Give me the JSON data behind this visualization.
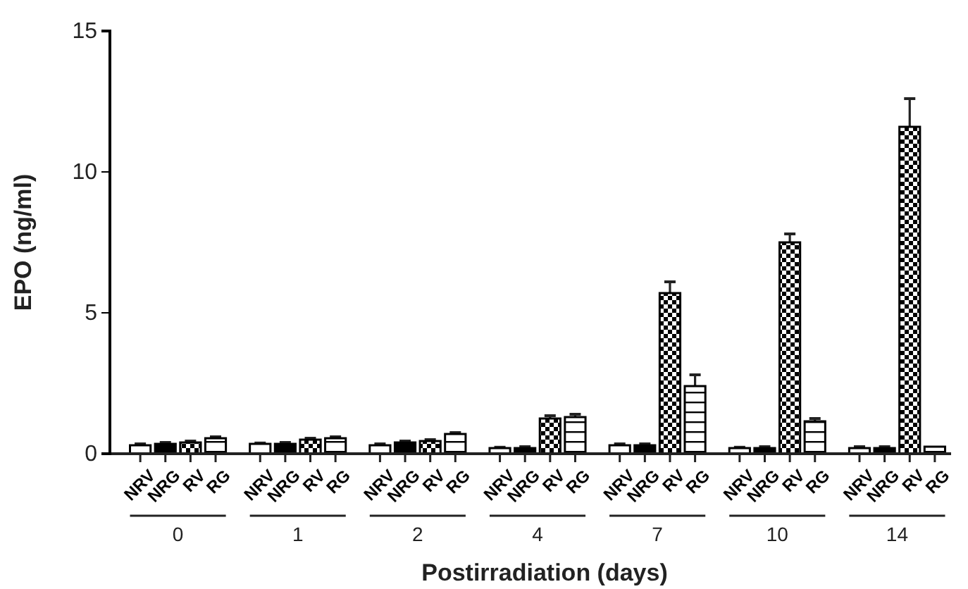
{
  "chart_data": {
    "type": "bar",
    "xlabel": "Postirradiation (days)",
    "ylabel": "EPO (ng/ml)",
    "categories": [
      "0",
      "1",
      "2",
      "4",
      "7",
      "10",
      "14"
    ],
    "ylim": [
      0,
      15
    ],
    "yticks": [
      0,
      5,
      10,
      15
    ],
    "grid": false,
    "legend": "bottom",
    "series": [
      {
        "name": "NRV",
        "color": "#ffffff",
        "values": [
          0.3,
          0.35,
          0.3,
          0.2,
          0.3,
          0.2,
          0.2
        ],
        "errors": [
          0.05,
          0.03,
          0.05,
          0.03,
          0.05,
          0.03,
          0.05
        ]
      },
      {
        "name": "NRG",
        "color": "#000000",
        "values": [
          0.35,
          0.35,
          0.4,
          0.2,
          0.3,
          0.2,
          0.2
        ],
        "errors": [
          0.05,
          0.05,
          0.05,
          0.05,
          0.05,
          0.05,
          0.05
        ]
      },
      {
        "name": "RV",
        "color": "#000000",
        "values": [
          0.4,
          0.5,
          0.45,
          1.25,
          5.7,
          7.5,
          11.6
        ],
        "errors": [
          0.05,
          0.05,
          0.05,
          0.1,
          0.4,
          0.3,
          1.0
        ]
      },
      {
        "name": "RG",
        "color": "#000000",
        "values": [
          0.55,
          0.55,
          0.7,
          1.3,
          2.4,
          1.15,
          0.25
        ],
        "errors": [
          0.05,
          0.05,
          0.05,
          0.1,
          0.4,
          0.1,
          null
        ]
      }
    ]
  }
}
